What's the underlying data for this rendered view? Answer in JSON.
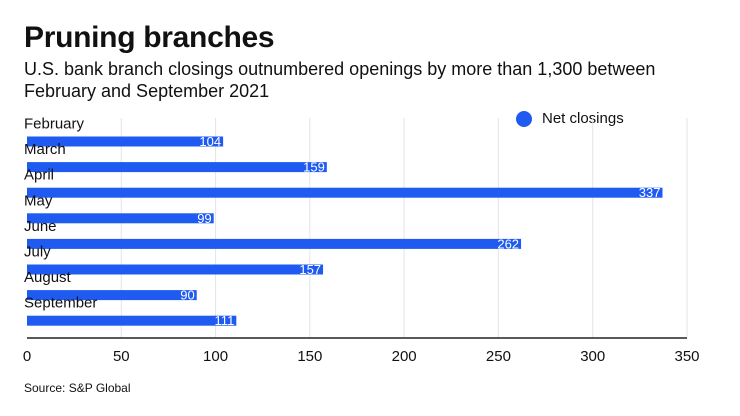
{
  "title": "Pruning branches",
  "subtitle": "U.S. bank branch closings outnumbered openings by more than 1,300 between February and September 2021",
  "source": "Source: S&P Global",
  "colors": {
    "bar": "#1f5bf0",
    "grid": "#e4e4e4",
    "axis": "#222222"
  },
  "chart_data": {
    "type": "bar",
    "orientation": "horizontal",
    "categories": [
      "February",
      "March",
      "April",
      "May",
      "June",
      "July",
      "August",
      "September"
    ],
    "series": [
      {
        "name": "Net closings",
        "values": [
          104,
          159,
          337,
          99,
          262,
          157,
          90,
          111
        ]
      }
    ],
    "xlim": [
      0,
      350
    ],
    "xticks": [
      0,
      50,
      100,
      150,
      200,
      250,
      300,
      350
    ],
    "grid": true,
    "legend_position": "top-right",
    "data_labels": true
  }
}
